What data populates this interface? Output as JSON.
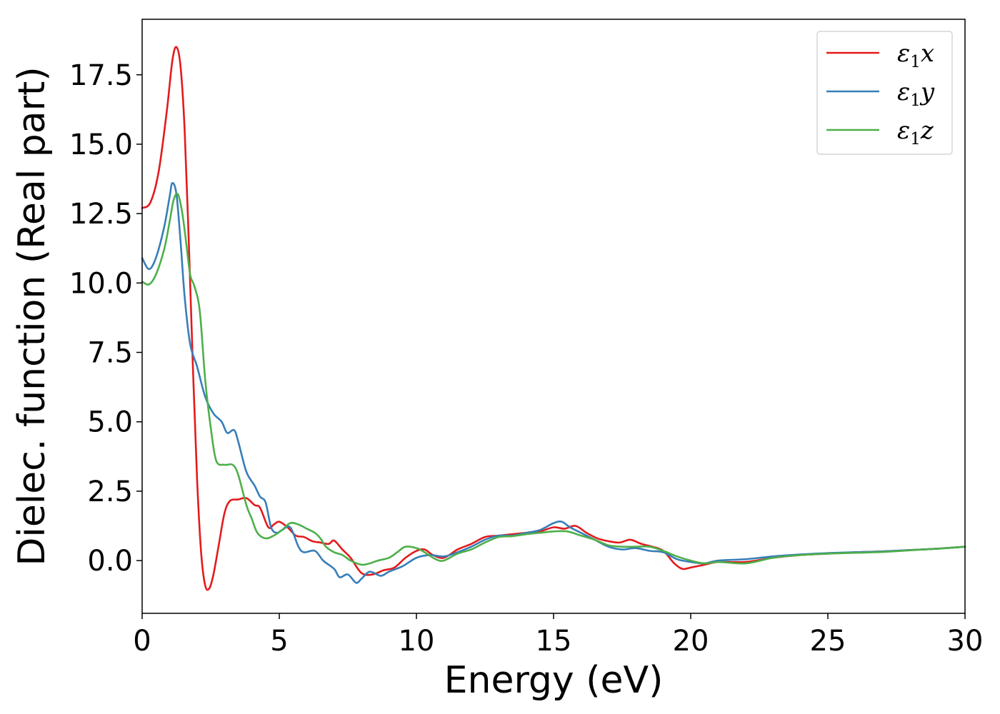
{
  "chart_data": {
    "type": "line",
    "xlabel": "Energy (eV)",
    "ylabel": "Dielec. function (Real part)",
    "xlim": [
      0,
      30
    ],
    "ylim": [
      -1.9,
      19.5
    ],
    "xticks": [
      0,
      5,
      10,
      15,
      20,
      25,
      30
    ],
    "xtick_labels": [
      "0",
      "5",
      "10",
      "15",
      "20",
      "25",
      "30"
    ],
    "yticks": [
      0,
      2.5,
      5,
      7.5,
      10,
      12.5,
      15,
      17.5
    ],
    "ytick_labels": [
      "0.0",
      "2.5",
      "5.0",
      "7.5",
      "10.0",
      "12.5",
      "15.0",
      "17.5"
    ],
    "grid": false,
    "legend_position": "top-right",
    "series": [
      {
        "name": "ε1x",
        "legend_main": "ε",
        "legend_sub": "1",
        "legend_tail": "x",
        "color": "#e41a1c",
        "points": [
          [
            0,
            12.7
          ],
          [
            0.3,
            12.9
          ],
          [
            0.6,
            14.0
          ],
          [
            0.9,
            16.2
          ],
          [
            1.1,
            18.0
          ],
          [
            1.25,
            18.5
          ],
          [
            1.4,
            17.8
          ],
          [
            1.55,
            15.5
          ],
          [
            1.7,
            11.5
          ],
          [
            1.85,
            7.0
          ],
          [
            2.0,
            3.0
          ],
          [
            2.15,
            0.3
          ],
          [
            2.3,
            -0.9
          ],
          [
            2.45,
            -1.0
          ],
          [
            2.6,
            -0.5
          ],
          [
            2.8,
            0.6
          ],
          [
            3.0,
            1.7
          ],
          [
            3.2,
            2.15
          ],
          [
            3.5,
            2.2
          ],
          [
            3.8,
            2.25
          ],
          [
            4.1,
            2.0
          ],
          [
            4.3,
            1.9
          ],
          [
            4.6,
            1.2
          ],
          [
            4.8,
            1.3
          ],
          [
            5.0,
            1.4
          ],
          [
            5.3,
            1.2
          ],
          [
            5.6,
            0.9
          ],
          [
            5.9,
            0.85
          ],
          [
            6.2,
            0.7
          ],
          [
            6.5,
            0.65
          ],
          [
            6.8,
            0.6
          ],
          [
            7.0,
            0.72
          ],
          [
            7.3,
            0.4
          ],
          [
            7.6,
            0.1
          ],
          [
            8.0,
            -0.45
          ],
          [
            8.4,
            -0.5
          ],
          [
            8.8,
            -0.35
          ],
          [
            9.2,
            -0.25
          ],
          [
            9.6,
            0.1
          ],
          [
            10.0,
            0.35
          ],
          [
            10.3,
            0.4
          ],
          [
            10.6,
            0.2
          ],
          [
            11.0,
            0.1
          ],
          [
            11.5,
            0.4
          ],
          [
            12.0,
            0.6
          ],
          [
            12.5,
            0.85
          ],
          [
            13.0,
            0.9
          ],
          [
            13.5,
            0.95
          ],
          [
            14.0,
            1.0
          ],
          [
            14.5,
            1.05
          ],
          [
            15.0,
            1.2
          ],
          [
            15.4,
            1.15
          ],
          [
            15.8,
            1.25
          ],
          [
            16.2,
            1.0
          ],
          [
            16.6,
            0.8
          ],
          [
            17.0,
            0.7
          ],
          [
            17.4,
            0.65
          ],
          [
            17.8,
            0.75
          ],
          [
            18.2,
            0.6
          ],
          [
            18.6,
            0.5
          ],
          [
            19.0,
            0.35
          ],
          [
            19.4,
            -0.1
          ],
          [
            19.7,
            -0.3
          ],
          [
            20.0,
            -0.25
          ],
          [
            20.5,
            -0.15
          ],
          [
            21.0,
            -0.05
          ],
          [
            22.0,
            -0.05
          ],
          [
            23.0,
            0.1
          ],
          [
            24.0,
            0.2
          ],
          [
            25.0,
            0.25
          ],
          [
            26.0,
            0.3
          ],
          [
            27.0,
            0.33
          ],
          [
            28.0,
            0.38
          ],
          [
            29.0,
            0.43
          ],
          [
            30.0,
            0.5
          ]
        ]
      },
      {
        "name": "ε1y",
        "legend_main": "ε",
        "legend_sub": "1",
        "legend_tail": "y",
        "color": "#377eb8",
        "points": [
          [
            0,
            10.9
          ],
          [
            0.25,
            10.5
          ],
          [
            0.5,
            10.9
          ],
          [
            0.8,
            12.0
          ],
          [
            1.0,
            13.1
          ],
          [
            1.1,
            13.6
          ],
          [
            1.25,
            13.2
          ],
          [
            1.4,
            11.5
          ],
          [
            1.55,
            9.5
          ],
          [
            1.75,
            7.8
          ],
          [
            2.0,
            7.0
          ],
          [
            2.3,
            5.9
          ],
          [
            2.6,
            5.3
          ],
          [
            2.9,
            5.0
          ],
          [
            3.1,
            4.6
          ],
          [
            3.35,
            4.7
          ],
          [
            3.5,
            4.3
          ],
          [
            3.8,
            3.2
          ],
          [
            4.1,
            2.7
          ],
          [
            4.3,
            2.3
          ],
          [
            4.5,
            2.1
          ],
          [
            4.7,
            1.2
          ],
          [
            4.9,
            1.0
          ],
          [
            5.1,
            1.1
          ],
          [
            5.4,
            1.2
          ],
          [
            5.7,
            0.5
          ],
          [
            5.9,
            0.3
          ],
          [
            6.3,
            0.35
          ],
          [
            6.6,
            0.0
          ],
          [
            7.0,
            -0.3
          ],
          [
            7.2,
            -0.6
          ],
          [
            7.5,
            -0.5
          ],
          [
            7.8,
            -0.8
          ],
          [
            8.0,
            -0.65
          ],
          [
            8.3,
            -0.4
          ],
          [
            8.7,
            -0.55
          ],
          [
            9.0,
            -0.4
          ],
          [
            9.5,
            -0.2
          ],
          [
            10.0,
            0.1
          ],
          [
            10.5,
            0.2
          ],
          [
            11.0,
            0.15
          ],
          [
            11.5,
            0.3
          ],
          [
            12.0,
            0.5
          ],
          [
            12.5,
            0.75
          ],
          [
            13.0,
            0.9
          ],
          [
            13.5,
            0.9
          ],
          [
            14.0,
            1.0
          ],
          [
            14.5,
            1.1
          ],
          [
            15.0,
            1.35
          ],
          [
            15.3,
            1.4
          ],
          [
            15.6,
            1.2
          ],
          [
            16.0,
            1.0
          ],
          [
            16.5,
            0.75
          ],
          [
            17.0,
            0.5
          ],
          [
            17.5,
            0.4
          ],
          [
            18.0,
            0.45
          ],
          [
            18.5,
            0.35
          ],
          [
            19.0,
            0.3
          ],
          [
            19.5,
            0.05
          ],
          [
            20.0,
            -0.05
          ],
          [
            20.5,
            -0.1
          ],
          [
            21.0,
            0.0
          ],
          [
            22.0,
            0.05
          ],
          [
            23.0,
            0.15
          ],
          [
            24.0,
            0.22
          ],
          [
            25.0,
            0.27
          ],
          [
            26.0,
            0.3
          ],
          [
            27.0,
            0.33
          ],
          [
            28.0,
            0.38
          ],
          [
            29.0,
            0.43
          ],
          [
            30.0,
            0.5
          ]
        ]
      },
      {
        "name": "ε1z",
        "legend_main": "ε",
        "legend_sub": "1",
        "legend_tail": "z",
        "color": "#4daf4a",
        "points": [
          [
            0,
            10.05
          ],
          [
            0.25,
            9.95
          ],
          [
            0.5,
            10.3
          ],
          [
            0.8,
            11.2
          ],
          [
            1.0,
            12.2
          ],
          [
            1.15,
            13.0
          ],
          [
            1.3,
            13.2
          ],
          [
            1.45,
            12.6
          ],
          [
            1.6,
            11.5
          ],
          [
            1.75,
            10.3
          ],
          [
            1.9,
            9.9
          ],
          [
            2.1,
            9.0
          ],
          [
            2.3,
            6.5
          ],
          [
            2.5,
            4.8
          ],
          [
            2.7,
            3.6
          ],
          [
            3.0,
            3.45
          ],
          [
            3.3,
            3.45
          ],
          [
            3.5,
            3.1
          ],
          [
            3.8,
            2.0
          ],
          [
            4.0,
            1.5
          ],
          [
            4.2,
            1.0
          ],
          [
            4.5,
            0.8
          ],
          [
            4.8,
            0.9
          ],
          [
            5.1,
            1.1
          ],
          [
            5.4,
            1.35
          ],
          [
            5.7,
            1.3
          ],
          [
            6.0,
            1.15
          ],
          [
            6.3,
            1.0
          ],
          [
            6.5,
            0.8
          ],
          [
            6.7,
            0.5
          ],
          [
            7.0,
            0.3
          ],
          [
            7.3,
            0.2
          ],
          [
            7.6,
            0.0
          ],
          [
            8.0,
            -0.15
          ],
          [
            8.3,
            -0.1
          ],
          [
            8.6,
            0.0
          ],
          [
            9.0,
            0.1
          ],
          [
            9.3,
            0.3
          ],
          [
            9.6,
            0.5
          ],
          [
            10.0,
            0.45
          ],
          [
            10.3,
            0.3
          ],
          [
            10.7,
            0.05
          ],
          [
            11.0,
            0.0
          ],
          [
            11.5,
            0.25
          ],
          [
            12.0,
            0.4
          ],
          [
            12.5,
            0.65
          ],
          [
            13.0,
            0.85
          ],
          [
            13.5,
            0.88
          ],
          [
            14.0,
            0.95
          ],
          [
            14.5,
            1.0
          ],
          [
            15.0,
            1.05
          ],
          [
            15.5,
            1.05
          ],
          [
            16.0,
            0.9
          ],
          [
            16.5,
            0.75
          ],
          [
            17.0,
            0.55
          ],
          [
            17.5,
            0.5
          ],
          [
            18.0,
            0.5
          ],
          [
            18.5,
            0.5
          ],
          [
            19.0,
            0.35
          ],
          [
            19.5,
            0.15
          ],
          [
            20.0,
            0.0
          ],
          [
            20.5,
            -0.1
          ],
          [
            21.0,
            -0.05
          ],
          [
            22.0,
            -0.1
          ],
          [
            23.0,
            0.1
          ],
          [
            24.0,
            0.2
          ],
          [
            25.0,
            0.25
          ],
          [
            26.0,
            0.28
          ],
          [
            27.0,
            0.31
          ],
          [
            28.0,
            0.37
          ],
          [
            29.0,
            0.43
          ],
          [
            30.0,
            0.5
          ]
        ]
      }
    ]
  }
}
